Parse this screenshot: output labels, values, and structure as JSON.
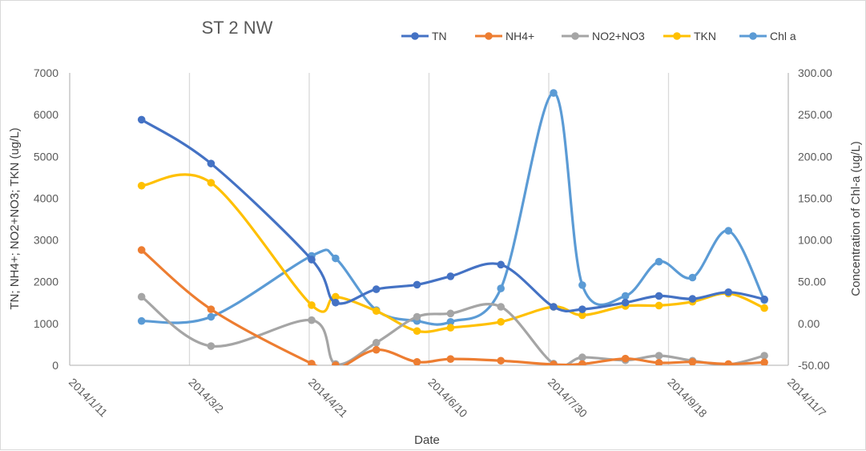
{
  "chart_data": {
    "type": "line",
    "title": "ST 2 NW",
    "xlabel": "Date",
    "ylabel_left": "TN; NH4+; NO2+NO3; TKN (ug/L)",
    "ylabel_right": "Concentration of Chl-a (ug/L)",
    "x_axis": {
      "type": "date",
      "min": "2014/1/11",
      "max": "2014/11/7",
      "tick_labels": [
        "2014/1/11",
        "2014/3/2",
        "2014/4/21",
        "2014/6/10",
        "2014/7/30",
        "2014/9/18",
        "2014/11/7"
      ]
    },
    "y_left": {
      "min": 0,
      "max": 7000,
      "tick_labels": [
        "0",
        "1000",
        "2000",
        "3000",
        "4000",
        "5000",
        "6000",
        "7000"
      ]
    },
    "y_right": {
      "min": -50,
      "max": 300,
      "tick_labels": [
        "-50.00",
        "0.00",
        "50.00",
        "100.00",
        "150.00",
        "200.00",
        "250.00",
        "300.00"
      ]
    },
    "grid": "vertical",
    "legend_position": "top-right",
    "series": [
      {
        "name": "TN",
        "axis": "left",
        "color": "#4472C4",
        "points": [
          [
            "2014/2/10",
            5880
          ],
          [
            "2014/3/11",
            4830
          ],
          [
            "2014/4/22",
            2530
          ],
          [
            "2014/5/2",
            1500
          ],
          [
            "2014/5/19",
            1820
          ],
          [
            "2014/6/5",
            1930
          ],
          [
            "2014/6/19",
            2130
          ],
          [
            "2014/7/10",
            2410
          ],
          [
            "2014/8/1",
            1400
          ],
          [
            "2014/8/13",
            1340
          ],
          [
            "2014/8/31",
            1500
          ],
          [
            "2014/9/14",
            1660
          ],
          [
            "2014/9/28",
            1590
          ],
          [
            "2014/10/13",
            1750
          ],
          [
            "2014/10/28",
            1580
          ]
        ]
      },
      {
        "name": "NH4+",
        "axis": "left",
        "color": "#ED7D31",
        "points": [
          [
            "2014/2/10",
            2760
          ],
          [
            "2014/3/11",
            1340
          ],
          [
            "2014/4/22",
            40
          ],
          [
            "2014/5/2",
            -100
          ],
          [
            "2014/5/19",
            370
          ],
          [
            "2014/6/5",
            80
          ],
          [
            "2014/6/19",
            150
          ],
          [
            "2014/7/10",
            110
          ],
          [
            "2014/8/1",
            20
          ],
          [
            "2014/8/13",
            30
          ],
          [
            "2014/8/31",
            160
          ],
          [
            "2014/9/14",
            60
          ],
          [
            "2014/9/28",
            80
          ],
          [
            "2014/10/13",
            30
          ],
          [
            "2014/10/28",
            70
          ]
        ]
      },
      {
        "name": "NO2+NO3",
        "axis": "left",
        "color": "#A5A5A5",
        "points": [
          [
            "2014/2/10",
            1640
          ],
          [
            "2014/3/11",
            460
          ],
          [
            "2014/4/22",
            1080
          ],
          [
            "2014/5/2",
            30
          ],
          [
            "2014/5/19",
            540
          ],
          [
            "2014/6/5",
            1160
          ],
          [
            "2014/6/19",
            1240
          ],
          [
            "2014/7/10",
            1400
          ],
          [
            "2014/8/1",
            40
          ],
          [
            "2014/8/13",
            190
          ],
          [
            "2014/8/31",
            120
          ],
          [
            "2014/9/14",
            230
          ],
          [
            "2014/9/28",
            110
          ],
          [
            "2014/10/13",
            20
          ],
          [
            "2014/10/28",
            230
          ]
        ]
      },
      {
        "name": "TKN",
        "axis": "left",
        "color": "#FFC000",
        "points": [
          [
            "2014/2/10",
            4300
          ],
          [
            "2014/3/11",
            4370
          ],
          [
            "2014/4/22",
            1440
          ],
          [
            "2014/5/2",
            1640
          ],
          [
            "2014/5/19",
            1300
          ],
          [
            "2014/6/5",
            820
          ],
          [
            "2014/6/19",
            900
          ],
          [
            "2014/7/10",
            1040
          ],
          [
            "2014/8/1",
            1400
          ],
          [
            "2014/8/13",
            1200
          ],
          [
            "2014/8/31",
            1420
          ],
          [
            "2014/9/14",
            1430
          ],
          [
            "2014/9/28",
            1520
          ],
          [
            "2014/10/13",
            1720
          ],
          [
            "2014/10/28",
            1370
          ]
        ]
      },
      {
        "name": "Chl a",
        "axis": "right",
        "color": "#5B9BD5",
        "points": [
          [
            "2014/2/10",
            3
          ],
          [
            "2014/3/11",
            8
          ],
          [
            "2014/4/22",
            81
          ],
          [
            "2014/5/2",
            78
          ],
          [
            "2014/5/19",
            16
          ],
          [
            "2014/6/5",
            3
          ],
          [
            "2014/6/19",
            2
          ],
          [
            "2014/7/10",
            42
          ],
          [
            "2014/8/1",
            276
          ],
          [
            "2014/8/13",
            46
          ],
          [
            "2014/8/31",
            33
          ],
          [
            "2014/9/14",
            74
          ],
          [
            "2014/9/28",
            55
          ],
          [
            "2014/10/13",
            111
          ],
          [
            "2014/10/28",
            28
          ]
        ]
      }
    ]
  }
}
